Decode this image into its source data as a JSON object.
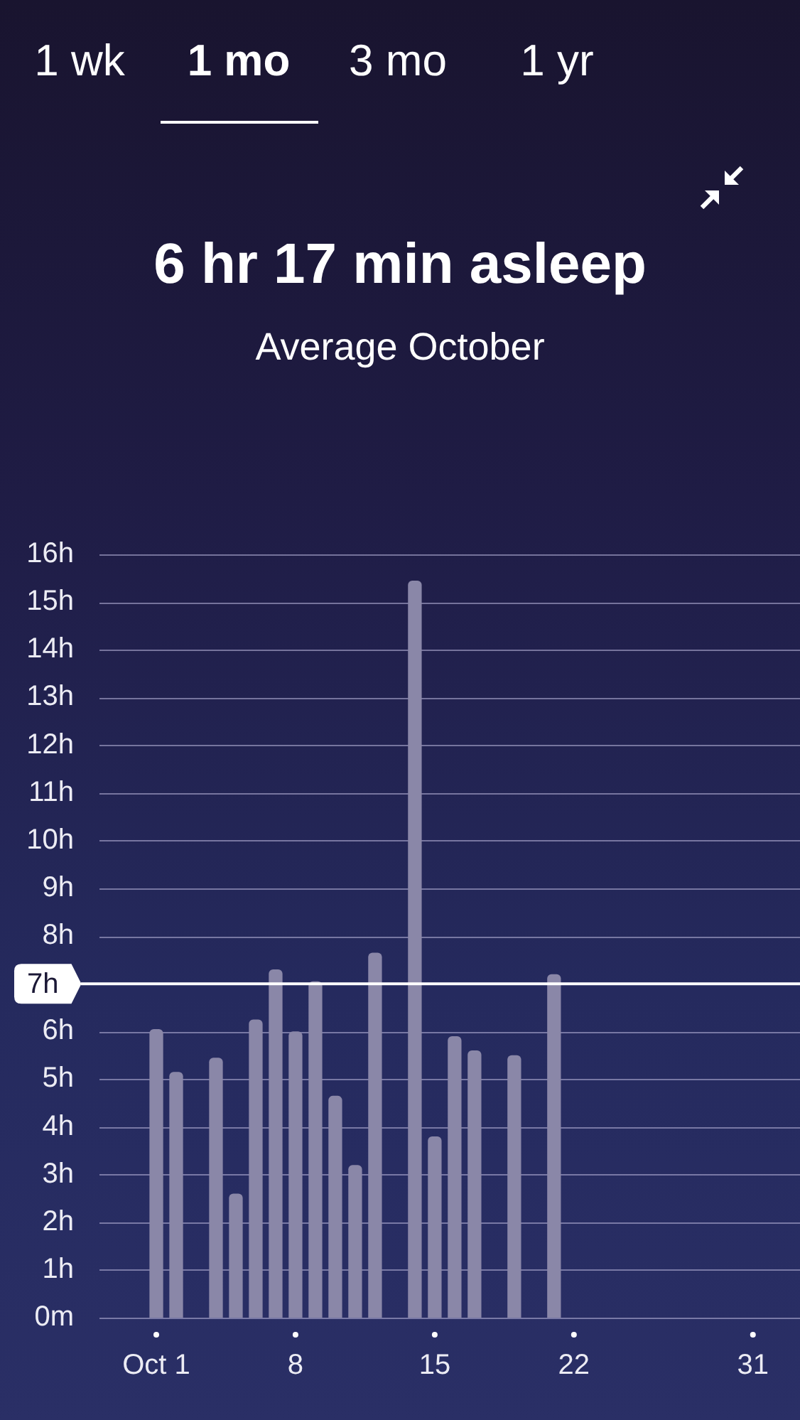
{
  "chart_data": {
    "type": "bar",
    "title": "6 hr 17 min asleep",
    "subtitle": "Average October",
    "annotations": [
      "1 wk",
      "1 mo",
      "3 mo",
      "1 yr"
    ],
    "categories": [
      "Oct 1",
      null,
      null,
      null,
      null,
      null,
      null,
      "8",
      null,
      null,
      null,
      null,
      null,
      null,
      "15",
      null,
      null,
      null,
      null,
      null,
      null,
      "22",
      null,
      null,
      null,
      null,
      null,
      null,
      null,
      null,
      "31"
    ],
    "values": [
      6.05,
      5.15,
      null,
      5.45,
      2.6,
      6.25,
      7.3,
      6.0,
      7.05,
      4.65,
      3.2,
      7.65,
      null,
      15.45,
      3.8,
      5.9,
      5.6,
      null,
      5.5,
      null,
      7.2,
      null,
      null,
      null,
      null,
      null,
      null,
      null,
      null,
      null,
      null
    ],
    "color": "#8a87a8",
    "ylim": [
      0,
      16
    ],
    "yticks": [
      {
        "value": 0,
        "label": "0m"
      },
      {
        "value": 1,
        "label": "1h"
      },
      {
        "value": 2,
        "label": "2h"
      },
      {
        "value": 3,
        "label": "3h"
      },
      {
        "value": 4,
        "label": "4h"
      },
      {
        "value": 5,
        "label": "5h"
      },
      {
        "value": 6,
        "label": "6h"
      },
      {
        "value": 8,
        "label": "8h"
      },
      {
        "value": 9,
        "label": "9h"
      },
      {
        "value": 10,
        "label": "10h"
      },
      {
        "value": 11,
        "label": "11h"
      },
      {
        "value": 12,
        "label": "12h"
      },
      {
        "value": 13,
        "label": "13h"
      },
      {
        "value": 14,
        "label": "14h"
      },
      {
        "value": 15,
        "label": "15h"
      },
      {
        "value": 16,
        "label": "16h"
      }
    ],
    "grid": "y",
    "ref_lines": [
      {
        "axis": "y",
        "value": 7,
        "label": "7h",
        "color": "#ffffff"
      }
    ]
  }
}
